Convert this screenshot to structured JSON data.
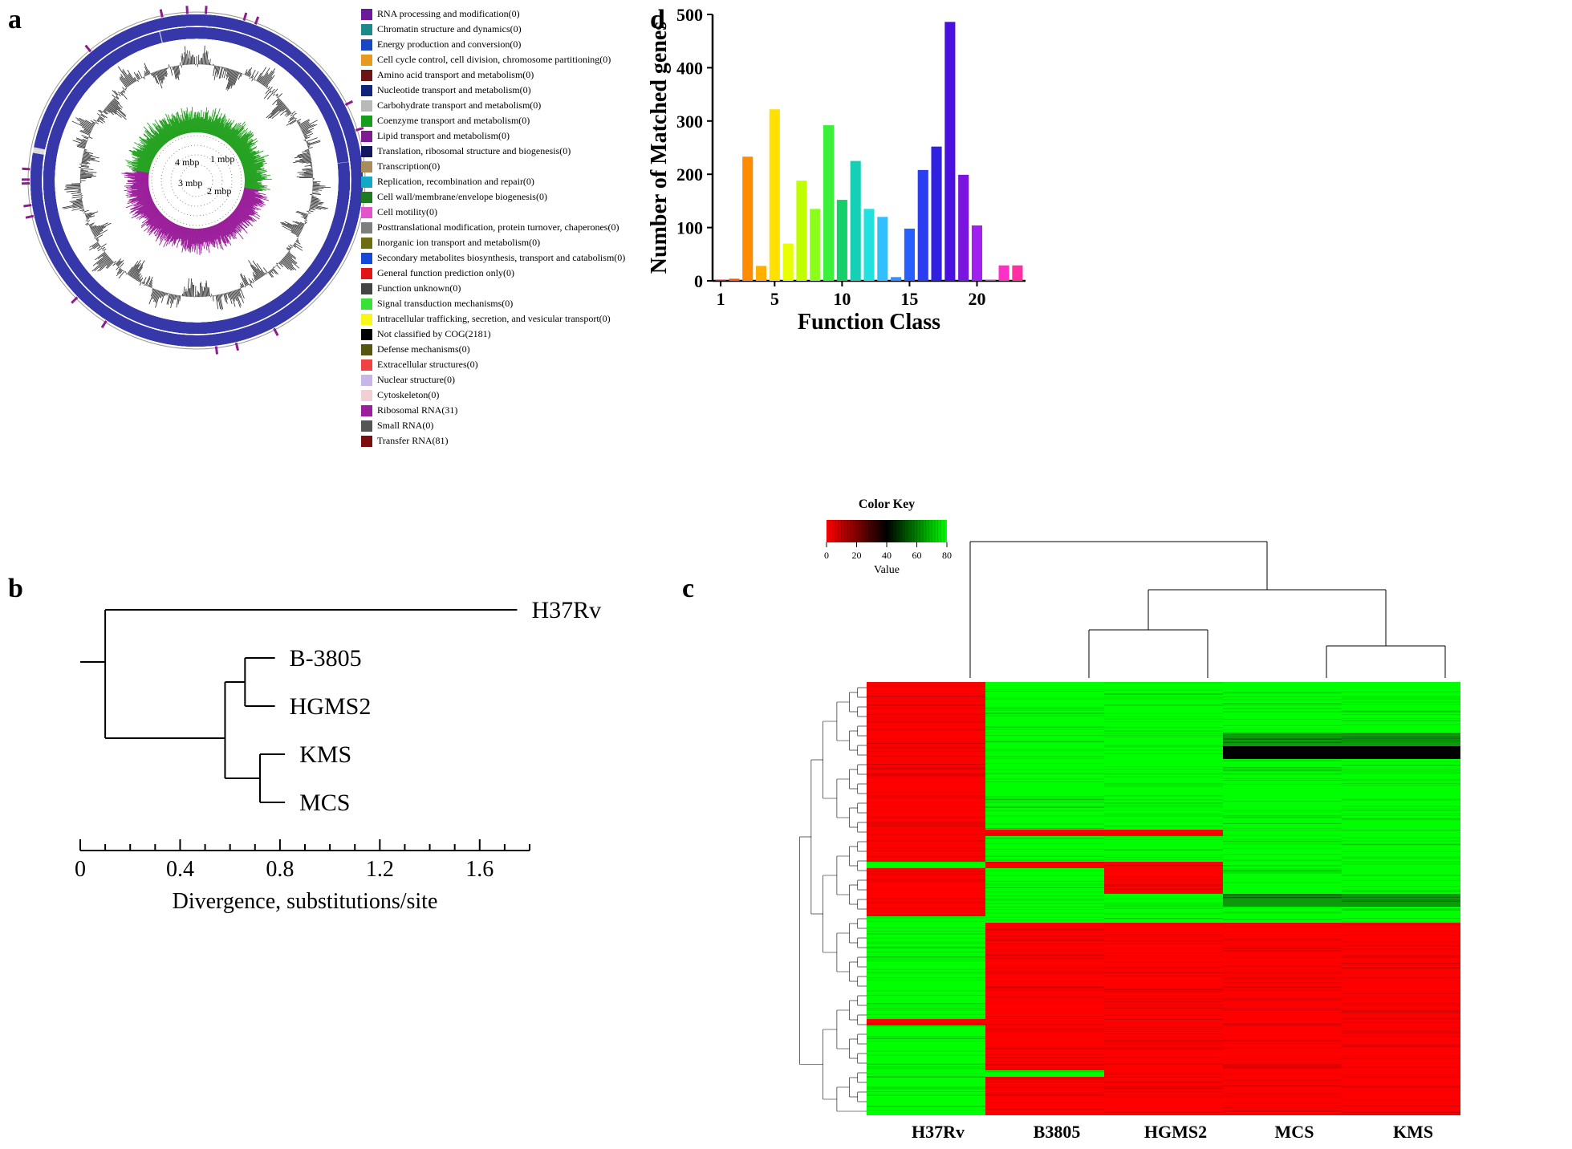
{
  "panels": {
    "a": {
      "label": "a"
    },
    "b": {
      "label": "b"
    },
    "c": {
      "label": "c"
    },
    "d": {
      "label": "d"
    }
  },
  "panel_a": {
    "mbp_labels": [
      "1 mbp",
      "2 mbp",
      "3 mbp",
      "4 mbp"
    ],
    "outer_ring_color": "#3637a8",
    "outer_accent_tick_color": "#8e1c8e",
    "gc_skew_color": "#2a2a2a",
    "inner_plus_color": "#25a221",
    "inner_minus_color": "#9b1f9b",
    "legend": [
      {
        "color": "#6a1b9a",
        "label": "RNA processing and modification(0)"
      },
      {
        "color": "#1b8a88",
        "label": "Chromatin structure and dynamics(0)"
      },
      {
        "color": "#1947c4",
        "label": "Energy production and conversion(0)"
      },
      {
        "color": "#e69b1f",
        "label": "Cell cycle control, cell division, chromosome partitioning(0)"
      },
      {
        "color": "#6b1515",
        "label": "Amino acid transport and metabolism(0)"
      },
      {
        "color": "#10247a",
        "label": "Nucleotide transport and metabolism(0)"
      },
      {
        "color": "#b9b9b9",
        "label": "Carbohydrate transport and metabolism(0)"
      },
      {
        "color": "#169c1f",
        "label": "Coenzyme transport and metabolism(0)"
      },
      {
        "color": "#7e1d8f",
        "label": "Lipid transport and metabolism(0)"
      },
      {
        "color": "#11185e",
        "label": "Translation, ribosomal structure and biogenesis(0)"
      },
      {
        "color": "#a88c5a",
        "label": "Transcription(0)"
      },
      {
        "color": "#13a9c4",
        "label": "Replication, recombination and repair(0)"
      },
      {
        "color": "#1f7b1f",
        "label": "Cell wall/membrane/envelope biogenesis(0)"
      },
      {
        "color": "#e055c7",
        "label": "Cell motility(0)"
      },
      {
        "color": "#7e7e7e",
        "label": "Posttranslational modification, protein turnover, chaperones(0)"
      },
      {
        "color": "#6c6c13",
        "label": "Inorganic ion transport and metabolism(0)"
      },
      {
        "color": "#1448d6",
        "label": "Secondary metabolites biosynthesis, transport and catabolism(0)"
      },
      {
        "color": "#e01515",
        "label": "General function prediction only(0)"
      },
      {
        "color": "#444444",
        "label": "Function unknown(0)"
      },
      {
        "color": "#38e038",
        "label": "Signal transduction mechanisms(0)"
      },
      {
        "color": "#f7f71a",
        "label": "Intracellular trafficking, secretion, and vesicular transport(0)"
      },
      {
        "color": "#000000",
        "label": "Not classified by COG(2181)"
      },
      {
        "color": "#565610",
        "label": "Defense mechanisms(0)"
      },
      {
        "color": "#f04242",
        "label": "Extracellular structures(0)"
      },
      {
        "color": "#c7b6e6",
        "label": "Nuclear structure(0)"
      },
      {
        "color": "#f0cfd6",
        "label": "Cytoskeleton(0)"
      },
      {
        "color": "#9b1f9b",
        "label": "Ribosomal RNA(31)"
      },
      {
        "color": "#555555",
        "label": "Small RNA(0)"
      },
      {
        "color": "#7a0e0e",
        "label": "Transfer RNA(81)"
      }
    ]
  },
  "panel_b": {
    "tips": [
      "H37Rv",
      "B-3805",
      "HGMS2",
      "KMS",
      "MCS"
    ],
    "tip_x": {
      "H37Rv": 1.75,
      "B-3805": 0.78,
      "HGMS2": 0.78,
      "KMS": 0.82,
      "MCS": 0.82
    },
    "axis": {
      "min": 0,
      "max": 1.8,
      "major_ticks": [
        0,
        0.4,
        0.8,
        1.2,
        1.6
      ],
      "minor_step": 0.1,
      "label": "Divergence, substitutions/site"
    },
    "line_color": "#000000",
    "line_width": 2,
    "label_fontsize": 30,
    "axis_fontsize": 28
  },
  "panel_c": {
    "columns": [
      "H37Rv",
      "B3805",
      "HGMS2",
      "MCS",
      "KMS"
    ],
    "color_low": "#ff0000",
    "color_mid": "#000000",
    "color_high": "#00ff00",
    "key": {
      "title": "Color Key",
      "ticks": [
        0,
        20,
        40,
        60,
        80
      ],
      "value_label": "Value"
    },
    "column_dendro": {
      "line_color": "#000000",
      "structure": "H37Rv outgroup, then (B3805,HGMS2) vs (MCS,KMS)"
    },
    "row_blocks": [
      {
        "h": 12,
        "cells": [
          "R",
          "G",
          "G",
          "G",
          "G"
        ]
      },
      {
        "h": 4,
        "cells": [
          "R",
          "G",
          "G",
          "G",
          "G"
        ]
      },
      {
        "h": 4,
        "cells": [
          "R",
          "G",
          "G",
          "Gd",
          "Gd"
        ]
      },
      {
        "h": 4,
        "cells": [
          "R",
          "G",
          "G",
          "M",
          "M"
        ]
      },
      {
        "h": 22,
        "cells": [
          "R",
          "G",
          "G",
          "G",
          "G"
        ]
      },
      {
        "h": 2,
        "cells": [
          "R",
          "R",
          "R",
          "G",
          "G"
        ]
      },
      {
        "h": 8,
        "cells": [
          "R",
          "G",
          "G",
          "G",
          "G"
        ]
      },
      {
        "h": 2,
        "cells": [
          "G",
          "R",
          "R",
          "G",
          "G"
        ]
      },
      {
        "h": 8,
        "cells": [
          "R",
          "G",
          "R",
          "G",
          "G"
        ]
      },
      {
        "h": 4,
        "cells": [
          "R",
          "G",
          "G",
          "Gd",
          "Gd"
        ]
      },
      {
        "h": 3,
        "cells": [
          "R",
          "G",
          "G",
          "G",
          "G"
        ]
      },
      {
        "h": 2,
        "cells": [
          "G",
          "G",
          "G",
          "G",
          "G"
        ]
      },
      {
        "h": 30,
        "cells": [
          "G",
          "R",
          "R",
          "R",
          "R"
        ]
      },
      {
        "h": 2,
        "cells": [
          "R",
          "R",
          "R",
          "R",
          "R"
        ]
      },
      {
        "h": 14,
        "cells": [
          "G",
          "R",
          "R",
          "R",
          "R"
        ]
      },
      {
        "h": 2,
        "cells": [
          "G",
          "G",
          "R",
          "R",
          "R"
        ]
      },
      {
        "h": 12,
        "cells": [
          "G",
          "R",
          "R",
          "R",
          "R"
        ]
      }
    ]
  },
  "panel_d": {
    "type": "bar",
    "xlabel": "Function Class",
    "ylabel": "Number of Matched genes",
    "xticks": [
      1,
      5,
      10,
      15,
      20
    ],
    "ylim": [
      0,
      500
    ],
    "ytick_step": 100,
    "bar_width": 0.78,
    "background_color": "#ffffff",
    "axis_color": "#000000",
    "label_fontsize": 28,
    "tick_fontsize": 22,
    "bars": [
      {
        "x": 1,
        "value": 2,
        "color": "#ff0a0a"
      },
      {
        "x": 2,
        "value": 4,
        "color": "#ff5a00"
      },
      {
        "x": 3,
        "value": 233,
        "color": "#ff8c00"
      },
      {
        "x": 4,
        "value": 28,
        "color": "#ffb000"
      },
      {
        "x": 5,
        "value": 322,
        "color": "#ffe000"
      },
      {
        "x": 6,
        "value": 70,
        "color": "#e8ff00"
      },
      {
        "x": 7,
        "value": 188,
        "color": "#c0ff00"
      },
      {
        "x": 8,
        "value": 135,
        "color": "#8aff1a"
      },
      {
        "x": 9,
        "value": 292,
        "color": "#3af03a"
      },
      {
        "x": 10,
        "value": 152,
        "color": "#15d06a"
      },
      {
        "x": 11,
        "value": 225,
        "color": "#15d0b5"
      },
      {
        "x": 12,
        "value": 135,
        "color": "#20e0e0"
      },
      {
        "x": 13,
        "value": 120,
        "color": "#30c0ff"
      },
      {
        "x": 14,
        "value": 7,
        "color": "#3090ff"
      },
      {
        "x": 15,
        "value": 98,
        "color": "#2860ff"
      },
      {
        "x": 16,
        "value": 208,
        "color": "#2a3df0"
      },
      {
        "x": 17,
        "value": 252,
        "color": "#3020e0"
      },
      {
        "x": 18,
        "value": 486,
        "color": "#4a10e0"
      },
      {
        "x": 19,
        "value": 199,
        "color": "#7a15e0"
      },
      {
        "x": 20,
        "value": 104,
        "color": "#a020f0"
      },
      {
        "x": 21,
        "value": 2,
        "color": "#d030f0"
      },
      {
        "x": 22,
        "value": 29,
        "color": "#ff30c8"
      },
      {
        "x": 23,
        "value": 29,
        "color": "#ff30a0"
      }
    ]
  }
}
